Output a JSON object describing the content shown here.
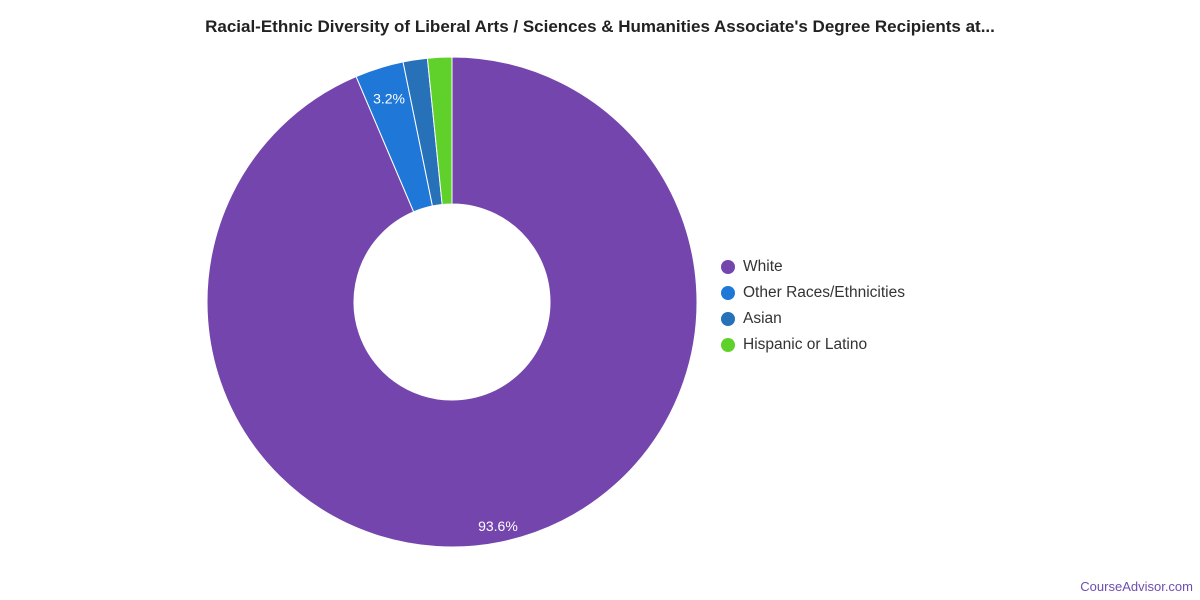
{
  "chart_data": {
    "type": "pie",
    "title": "Racial-Ethnic Diversity of Liberal Arts / Sciences & Humanities Associate's Degree Recipients at...",
    "categories": [
      "White",
      "Other Races/Ethnicities",
      "Asian",
      "Hispanic or Latino"
    ],
    "values": [
      93.6,
      3.2,
      1.6,
      1.6
    ],
    "colors": [
      "#7446ad",
      "#1f78d8",
      "#2671b7",
      "#5fd12a"
    ],
    "data_labels": [
      "93.6%",
      "3.2%",
      "",
      ""
    ],
    "legend_position": "right",
    "donut": true
  },
  "watermark": "CourseAdvisor.com"
}
